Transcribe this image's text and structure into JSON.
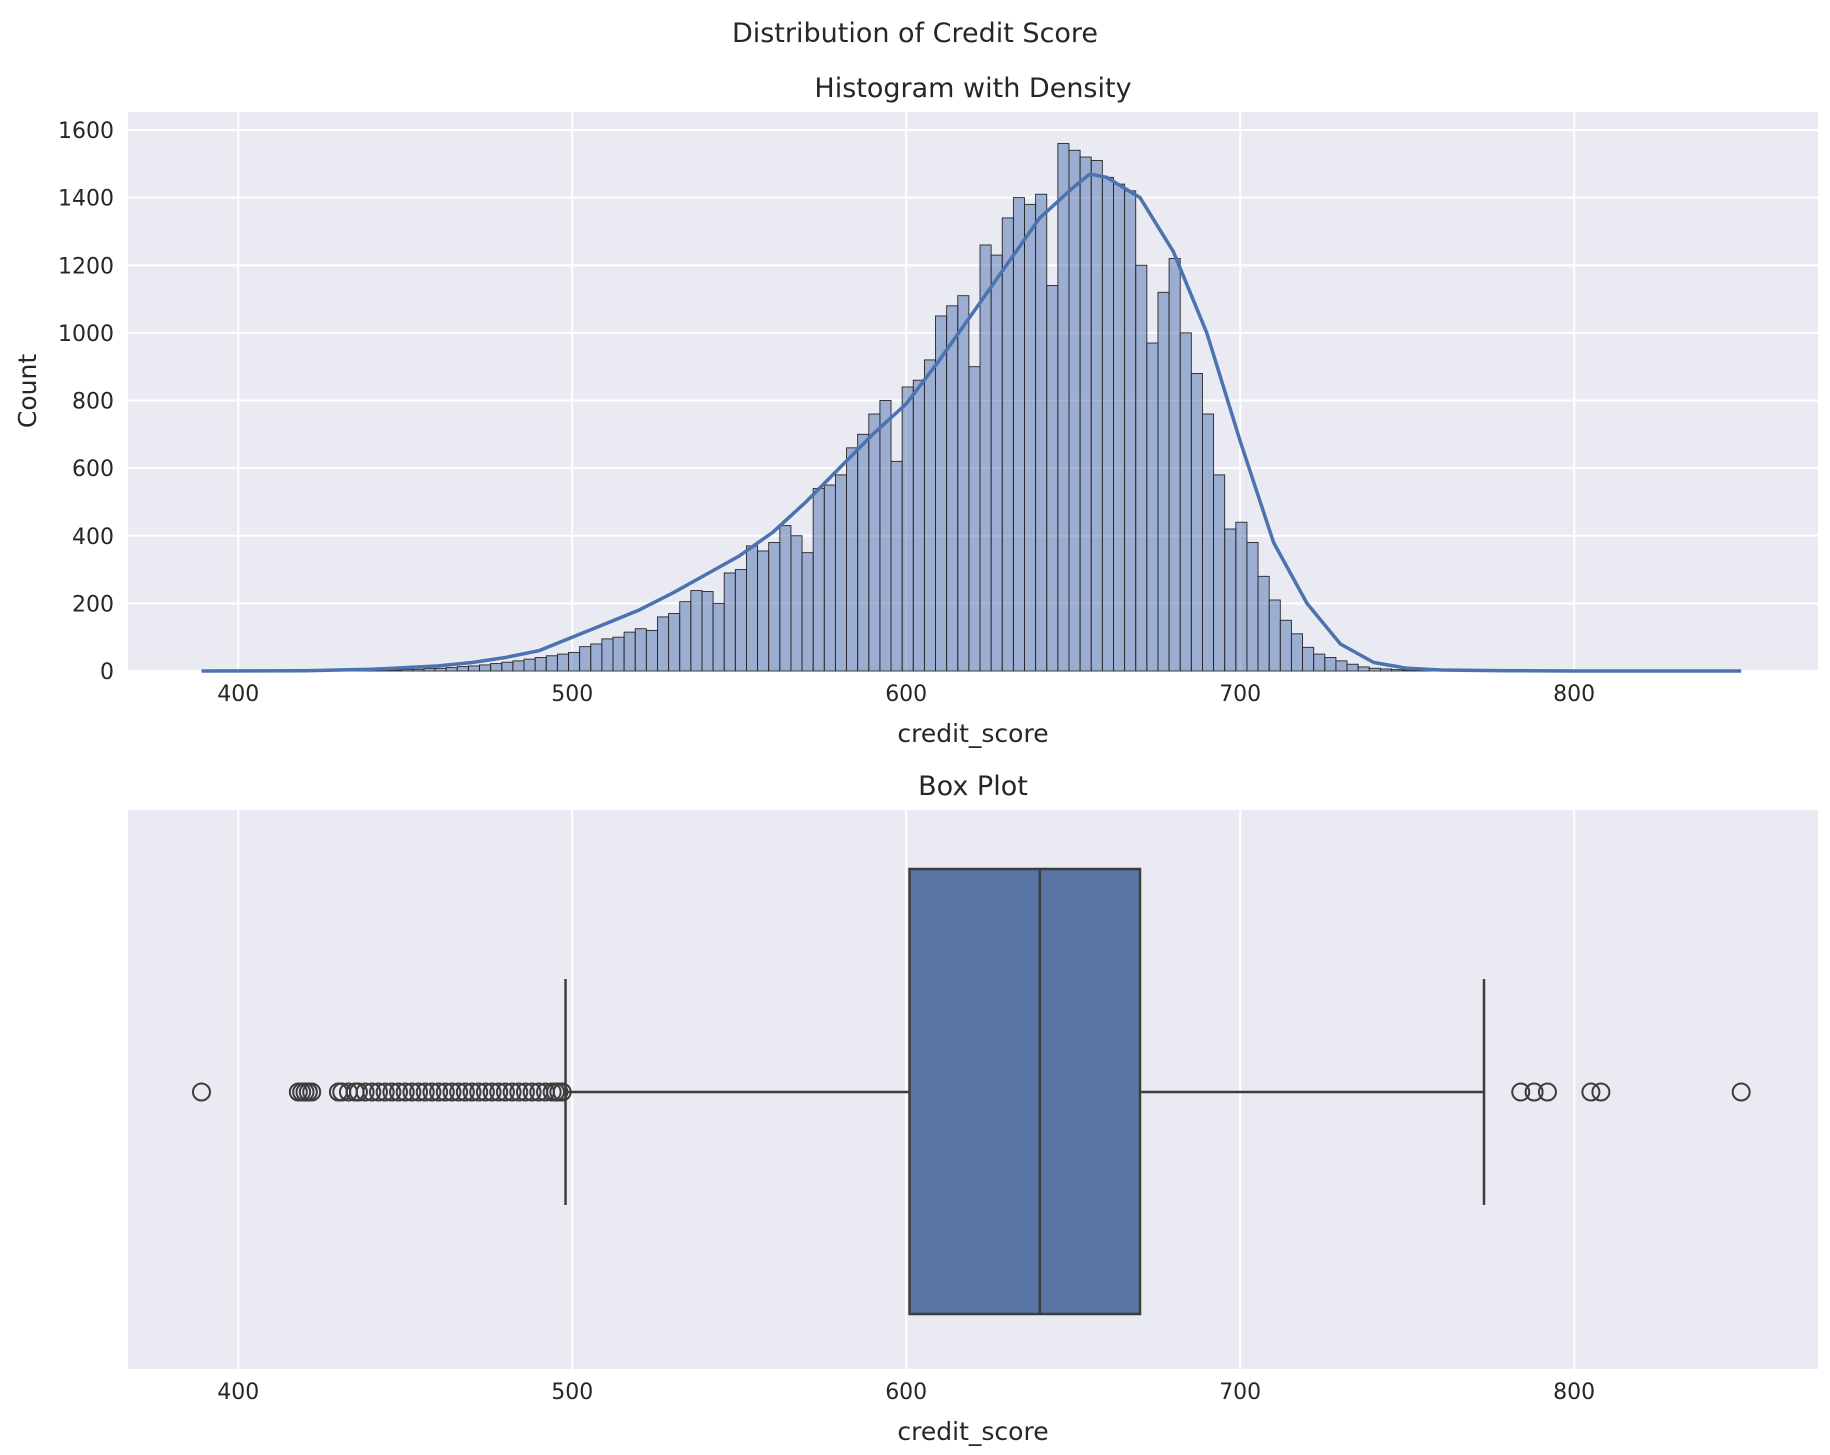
{
  "figure": {
    "suptitle": "Distribution of Credit Score"
  },
  "chart_data": [
    {
      "type": "bar",
      "subtype": "histogram-with-kde",
      "title": "Histogram with Density",
      "xlabel": "credit_score",
      "ylabel": "Count",
      "xlim": [
        367,
        873
      ],
      "ylim": [
        0,
        1600
      ],
      "xticks": [
        400,
        500,
        600,
        700,
        800
      ],
      "yticks": [
        0,
        200,
        400,
        600,
        800,
        1000,
        1200,
        1400,
        1600
      ],
      "grid": true,
      "colors": {
        "bar_fill": "#4c72b0",
        "bar_fill_alpha": 0.5,
        "bar_edge": "#262626",
        "kde": "#4c72b0",
        "background": "#eaeaf2",
        "grid": "#ffffff"
      },
      "bins": {
        "start": 389,
        "width": 3.33,
        "counts": [
          0,
          0,
          0,
          0,
          0,
          0,
          0,
          0,
          0,
          0,
          1,
          1,
          1,
          1,
          2,
          2,
          3,
          3,
          4,
          5,
          7,
          8,
          10,
          13,
          15,
          18,
          22,
          26,
          30,
          35,
          40,
          45,
          50,
          55,
          72,
          80,
          95,
          100,
          115,
          125,
          120,
          160,
          170,
          205,
          238,
          235,
          200,
          290,
          300,
          370,
          355,
          380,
          430,
          400,
          350,
          540,
          550,
          580,
          660,
          700,
          760,
          800,
          620,
          840,
          860,
          920,
          1050,
          1080,
          1110,
          900,
          1260,
          1230,
          1340,
          1400,
          1380,
          1410,
          1140,
          1560,
          1540,
          1520,
          1510,
          1460,
          1440,
          1420,
          1200,
          970,
          1120,
          1220,
          1000,
          880,
          760,
          580,
          420,
          440,
          380,
          280,
          210,
          150,
          110,
          70,
          50,
          40,
          30,
          20,
          12,
          8,
          6,
          4,
          3,
          2,
          2,
          1,
          1,
          1,
          1,
          1,
          1,
          0,
          0,
          0,
          0,
          0,
          0,
          0,
          0,
          0,
          0,
          0,
          0,
          0,
          0,
          0,
          0,
          0,
          0,
          0
        ]
      },
      "kde": {
        "x": [
          389,
          420,
          440,
          460,
          470,
          480,
          490,
          500,
          510,
          520,
          530,
          540,
          550,
          560,
          570,
          580,
          590,
          600,
          610,
          620,
          630,
          640,
          650,
          655,
          660,
          670,
          680,
          690,
          700,
          710,
          720,
          730,
          740,
          750,
          760,
          780,
          800,
          850
        ],
        "y": [
          0,
          1,
          5,
          15,
          25,
          40,
          60,
          100,
          140,
          180,
          230,
          285,
          340,
          410,
          500,
          600,
          700,
          790,
          920,
          1060,
          1200,
          1340,
          1430,
          1470,
          1460,
          1400,
          1240,
          1000,
          680,
          380,
          200,
          80,
          25,
          8,
          3,
          1,
          0,
          0
        ]
      }
    },
    {
      "type": "box",
      "title": "Box Plot",
      "xlabel": "credit_score",
      "xlim": [
        367,
        873
      ],
      "xticks": [
        400,
        500,
        600,
        700,
        800
      ],
      "grid": true,
      "colors": {
        "box_fill": "#5975a4",
        "line": "#3d3d3d",
        "background": "#eaeaf2",
        "grid": "#ffffff"
      },
      "whisker_low": 498,
      "q1": 601,
      "median": 640,
      "q3": 670,
      "whisker_high": 773,
      "outliers": [
        389,
        418,
        419,
        420,
        421,
        422,
        430,
        431,
        433,
        435,
        436,
        438,
        440,
        442,
        444,
        446,
        448,
        450,
        452,
        454,
        456,
        458,
        460,
        462,
        464,
        466,
        468,
        470,
        472,
        474,
        476,
        478,
        480,
        482,
        484,
        486,
        488,
        490,
        492,
        494,
        495,
        496,
        497,
        784,
        788,
        792,
        805,
        808,
        850
      ]
    }
  ]
}
